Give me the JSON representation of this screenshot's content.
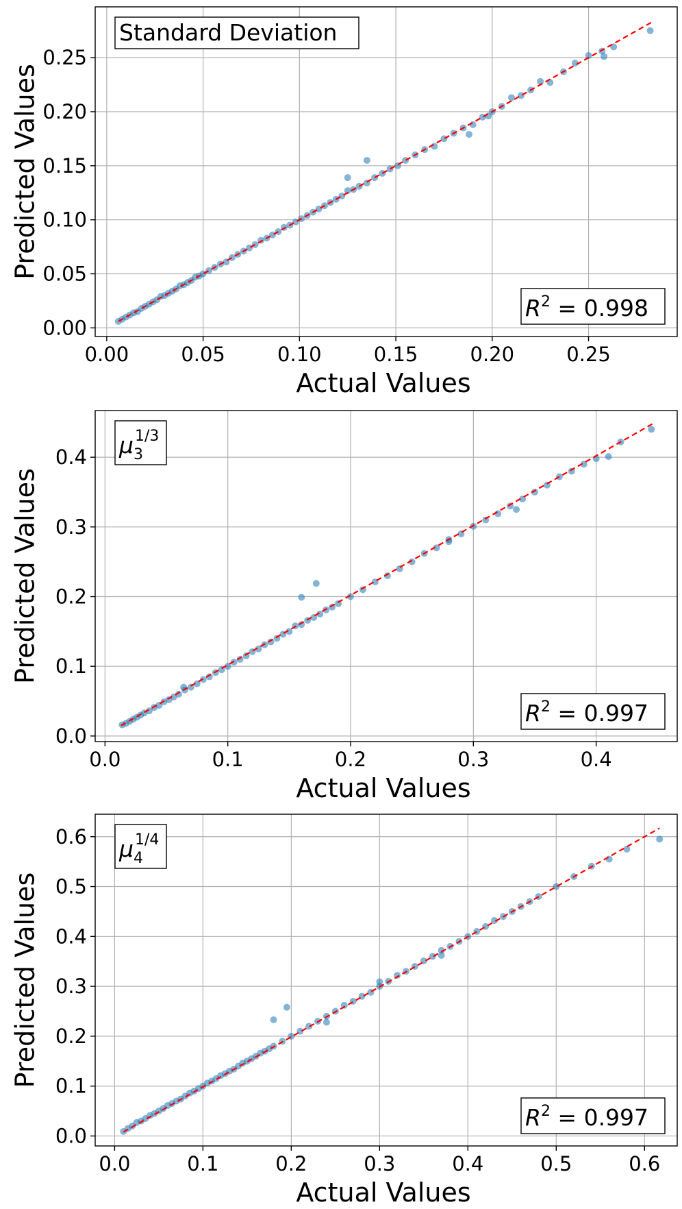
{
  "figure": {
    "panels_count": 3
  },
  "chart_data": [
    {
      "type": "scatter",
      "title": "",
      "label": "Standard Deviation",
      "label_math": null,
      "r2_label": "R",
      "r2_exp": "2",
      "r2_value": " = 0.998",
      "xlabel": "Actual Values",
      "ylabel": "Predicted Values",
      "xlim": [
        -0.006,
        0.296
      ],
      "ylim": [
        -0.008,
        0.297
      ],
      "xticks": [
        0.0,
        0.05,
        0.1,
        0.15,
        0.2,
        0.25
      ],
      "xtick_labels": [
        "0.00",
        "0.05",
        "0.10",
        "0.15",
        "0.20",
        "0.25"
      ],
      "yticks": [
        0.0,
        0.05,
        0.1,
        0.15,
        0.2,
        0.25
      ],
      "ytick_labels": [
        "0.00",
        "0.05",
        "0.10",
        "0.15",
        "0.20",
        "0.25"
      ],
      "grid": true,
      "fit_line": [
        [
          0.006,
          0.006
        ],
        [
          0.283,
          0.283
        ]
      ],
      "x": [
        0.006,
        0.008,
        0.01,
        0.012,
        0.014,
        0.016,
        0.018,
        0.02,
        0.022,
        0.024,
        0.026,
        0.028,
        0.03,
        0.032,
        0.034,
        0.036,
        0.038,
        0.04,
        0.042,
        0.044,
        0.046,
        0.048,
        0.05,
        0.053,
        0.056,
        0.059,
        0.062,
        0.065,
        0.068,
        0.071,
        0.074,
        0.077,
        0.08,
        0.083,
        0.086,
        0.089,
        0.092,
        0.095,
        0.098,
        0.101,
        0.104,
        0.107,
        0.11,
        0.113,
        0.116,
        0.119,
        0.122,
        0.125,
        0.128,
        0.131,
        0.135,
        0.139,
        0.143,
        0.147,
        0.151,
        0.155,
        0.16,
        0.165,
        0.17,
        0.175,
        0.18,
        0.185,
        0.19,
        0.195,
        0.2,
        0.205,
        0.21,
        0.215,
        0.22,
        0.225,
        0.23,
        0.237,
        0.243,
        0.25,
        0.257,
        0.263,
        0.282,
        0.125,
        0.135,
        0.188,
        0.198,
        0.258
      ],
      "y": [
        0.006,
        0.008,
        0.01,
        0.012,
        0.014,
        0.015,
        0.018,
        0.02,
        0.022,
        0.024,
        0.026,
        0.029,
        0.03,
        0.032,
        0.034,
        0.036,
        0.039,
        0.04,
        0.042,
        0.044,
        0.047,
        0.048,
        0.05,
        0.053,
        0.056,
        0.059,
        0.061,
        0.065,
        0.068,
        0.071,
        0.074,
        0.077,
        0.081,
        0.083,
        0.086,
        0.089,
        0.093,
        0.095,
        0.098,
        0.101,
        0.104,
        0.107,
        0.11,
        0.113,
        0.116,
        0.119,
        0.122,
        0.127,
        0.128,
        0.131,
        0.134,
        0.139,
        0.143,
        0.147,
        0.15,
        0.155,
        0.16,
        0.165,
        0.168,
        0.175,
        0.18,
        0.185,
        0.188,
        0.195,
        0.2,
        0.205,
        0.213,
        0.215,
        0.22,
        0.228,
        0.227,
        0.237,
        0.245,
        0.252,
        0.256,
        0.26,
        0.275,
        0.139,
        0.155,
        0.179,
        0.196,
        0.251
      ]
    },
    {
      "type": "scatter",
      "title": "",
      "label": "",
      "label_math": {
        "base": "μ",
        "sub": "3",
        "sup": "1/3"
      },
      "r2_label": "R",
      "r2_exp": "2",
      "r2_value": " = 0.997",
      "xlabel": "Actual Values",
      "ylabel": "Predicted Values",
      "xlim": [
        -0.008,
        0.466
      ],
      "ylim": [
        -0.008,
        0.467
      ],
      "xticks": [
        0.0,
        0.1,
        0.2,
        0.3,
        0.4
      ],
      "xtick_labels": [
        "0.0",
        "0.1",
        "0.2",
        "0.3",
        "0.4"
      ],
      "yticks": [
        0.0,
        0.1,
        0.2,
        0.3,
        0.4
      ],
      "ytick_labels": [
        "0.0",
        "0.1",
        "0.2",
        "0.3",
        "0.4"
      ],
      "grid": true,
      "fit_line": [
        [
          0.013,
          0.015
        ],
        [
          0.447,
          0.449
        ]
      ],
      "x": [
        0.014,
        0.017,
        0.02,
        0.023,
        0.026,
        0.029,
        0.032,
        0.036,
        0.04,
        0.044,
        0.048,
        0.052,
        0.056,
        0.06,
        0.065,
        0.07,
        0.075,
        0.08,
        0.085,
        0.09,
        0.095,
        0.1,
        0.105,
        0.11,
        0.115,
        0.12,
        0.125,
        0.13,
        0.135,
        0.14,
        0.145,
        0.15,
        0.155,
        0.16,
        0.165,
        0.17,
        0.175,
        0.18,
        0.185,
        0.19,
        0.2,
        0.21,
        0.22,
        0.23,
        0.24,
        0.25,
        0.26,
        0.27,
        0.28,
        0.29,
        0.3,
        0.31,
        0.32,
        0.33,
        0.34,
        0.35,
        0.36,
        0.37,
        0.38,
        0.39,
        0.4,
        0.41,
        0.42,
        0.445,
        0.16,
        0.172,
        0.064,
        0.28,
        0.335
      ],
      "y": [
        0.016,
        0.018,
        0.021,
        0.024,
        0.027,
        0.03,
        0.033,
        0.036,
        0.041,
        0.044,
        0.049,
        0.052,
        0.056,
        0.06,
        0.066,
        0.07,
        0.075,
        0.081,
        0.085,
        0.091,
        0.095,
        0.1,
        0.106,
        0.11,
        0.115,
        0.121,
        0.125,
        0.131,
        0.135,
        0.14,
        0.146,
        0.15,
        0.158,
        0.16,
        0.166,
        0.17,
        0.175,
        0.181,
        0.185,
        0.19,
        0.2,
        0.21,
        0.221,
        0.23,
        0.24,
        0.25,
        0.262,
        0.27,
        0.279,
        0.29,
        0.301,
        0.31,
        0.319,
        0.33,
        0.34,
        0.35,
        0.36,
        0.372,
        0.38,
        0.39,
        0.398,
        0.401,
        0.422,
        0.44,
        0.199,
        0.219,
        0.07,
        0.282,
        0.325
      ]
    },
    {
      "type": "scatter",
      "title": "",
      "label": "",
      "label_math": {
        "base": "μ",
        "sub": "4",
        "sup": "1/4"
      },
      "r2_label": "R",
      "r2_exp": "2",
      "r2_value": " = 0.997",
      "xlabel": "Actual Values",
      "ylabel": "Predicted Values",
      "xlim": [
        -0.022,
        0.637
      ],
      "ylim": [
        -0.02,
        0.645
      ],
      "xticks": [
        0.0,
        0.1,
        0.2,
        0.3,
        0.4,
        0.5,
        0.6
      ],
      "xtick_labels": [
        "0.0",
        "0.1",
        "0.2",
        "0.3",
        "0.4",
        "0.5",
        "0.6"
      ],
      "yticks": [
        0.0,
        0.1,
        0.2,
        0.3,
        0.4,
        0.5,
        0.6
      ],
      "ytick_labels": [
        "0.0",
        "0.1",
        "0.2",
        "0.3",
        "0.4",
        "0.5",
        "0.6"
      ],
      "grid": true,
      "fit_line": [
        [
          0.01,
          0.008
        ],
        [
          0.617,
          0.617
        ]
      ],
      "x": [
        0.01,
        0.015,
        0.02,
        0.025,
        0.03,
        0.035,
        0.04,
        0.045,
        0.05,
        0.055,
        0.06,
        0.065,
        0.07,
        0.075,
        0.08,
        0.085,
        0.09,
        0.095,
        0.1,
        0.105,
        0.11,
        0.115,
        0.12,
        0.125,
        0.13,
        0.135,
        0.14,
        0.145,
        0.15,
        0.155,
        0.16,
        0.165,
        0.17,
        0.175,
        0.18,
        0.19,
        0.2,
        0.21,
        0.22,
        0.23,
        0.24,
        0.25,
        0.26,
        0.27,
        0.28,
        0.29,
        0.3,
        0.31,
        0.32,
        0.33,
        0.34,
        0.35,
        0.36,
        0.37,
        0.38,
        0.39,
        0.4,
        0.41,
        0.42,
        0.43,
        0.44,
        0.45,
        0.46,
        0.47,
        0.48,
        0.5,
        0.52,
        0.54,
        0.56,
        0.58,
        0.617,
        0.18,
        0.195,
        0.24,
        0.3,
        0.37
      ],
      "y": [
        0.009,
        0.015,
        0.02,
        0.027,
        0.03,
        0.035,
        0.041,
        0.045,
        0.05,
        0.055,
        0.061,
        0.065,
        0.07,
        0.074,
        0.08,
        0.086,
        0.09,
        0.095,
        0.1,
        0.106,
        0.11,
        0.115,
        0.121,
        0.125,
        0.13,
        0.134,
        0.14,
        0.146,
        0.15,
        0.155,
        0.16,
        0.166,
        0.17,
        0.175,
        0.18,
        0.19,
        0.2,
        0.21,
        0.22,
        0.23,
        0.24,
        0.25,
        0.262,
        0.27,
        0.28,
        0.288,
        0.3,
        0.31,
        0.322,
        0.33,
        0.34,
        0.351,
        0.36,
        0.372,
        0.38,
        0.39,
        0.4,
        0.41,
        0.42,
        0.432,
        0.44,
        0.45,
        0.46,
        0.47,
        0.48,
        0.5,
        0.52,
        0.541,
        0.555,
        0.575,
        0.595,
        0.233,
        0.258,
        0.228,
        0.309,
        0.362
      ]
    }
  ]
}
